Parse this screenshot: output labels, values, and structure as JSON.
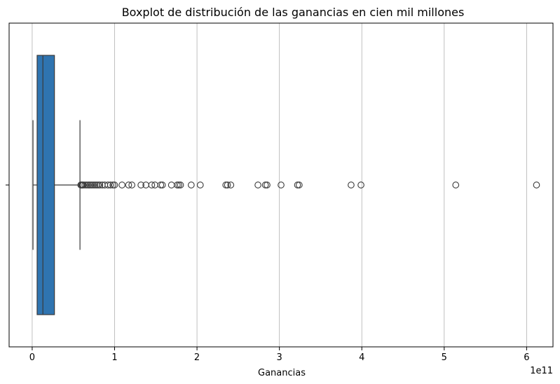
{
  "chart_data": {
    "type": "boxplot",
    "orientation": "horizontal",
    "title": "Boxplot de distribución de las ganancias en cien mil millones",
    "xlabel": "Ganancias",
    "ylabel": "",
    "x_offset_label": "1e11",
    "xlim": [
      -0.28,
      6.32
    ],
    "xticks": [
      0,
      1,
      2,
      3,
      4,
      5,
      6
    ],
    "x_tick_labels": [
      "0",
      "1",
      "2",
      "3",
      "4",
      "5",
      "6"
    ],
    "grid": "vertical",
    "box": {
      "whisker_low": 0.01,
      "q1": 0.06,
      "median": 0.13,
      "q3": 0.27,
      "whisker_high": 0.58,
      "color": "#2f74b0"
    },
    "outliers": [
      0.59,
      0.6,
      0.61,
      0.62,
      0.64,
      0.66,
      0.68,
      0.7,
      0.72,
      0.74,
      0.76,
      0.78,
      0.8,
      0.82,
      0.85,
      0.88,
      0.92,
      0.95,
      0.98,
      1.0,
      1.09,
      1.17,
      1.21,
      1.32,
      1.38,
      1.45,
      1.49,
      1.56,
      1.58,
      1.69,
      1.76,
      1.78,
      1.8,
      1.93,
      2.04,
      2.35,
      2.37,
      2.41,
      2.74,
      2.83,
      2.85,
      3.02,
      3.22,
      3.24,
      3.87,
      3.99,
      5.14,
      6.12
    ]
  }
}
